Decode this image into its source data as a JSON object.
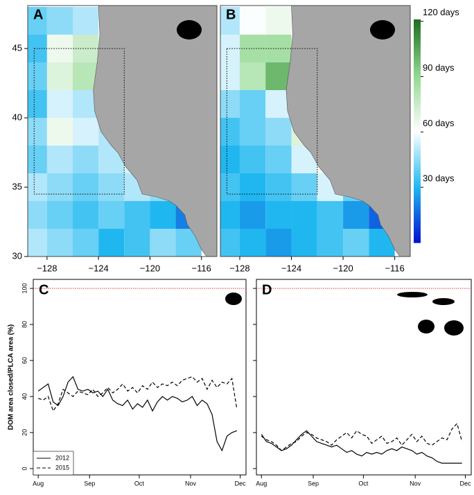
{
  "chart_data": [
    {
      "type": "heatmap",
      "label": "A",
      "xlim": [
        -129.5,
        -114.8
      ],
      "ylim": [
        30,
        48.1
      ],
      "x": [
        -130,
        -128,
        -126,
        -124,
        -122,
        -120,
        -118,
        -116
      ],
      "y": [
        46,
        44,
        42,
        40,
        38,
        36,
        34,
        32,
        30
      ],
      "z": [
        [
          40,
          45,
          50,
          null,
          null,
          null,
          null,
          null
        ],
        [
          35,
          65,
          75,
          null,
          null,
          null,
          null,
          null
        ],
        [
          40,
          70,
          80,
          null,
          null,
          null,
          null,
          null
        ],
        [
          35,
          55,
          50,
          45,
          null,
          null,
          null,
          null
        ],
        [
          45,
          65,
          55,
          50,
          null,
          null,
          null,
          null
        ],
        [
          40,
          50,
          45,
          50,
          55,
          null,
          null,
          null
        ],
        [
          50,
          45,
          40,
          45,
          50,
          45,
          null,
          null
        ],
        [
          45,
          40,
          35,
          40,
          35,
          30,
          20,
          null
        ],
        [
          50,
          45,
          40,
          30,
          35,
          45,
          40,
          null
        ]
      ],
      "zlim": [
        0,
        121
      ],
      "colorscale": [
        "#0010d0",
        "#20b8f0",
        "#ffffff",
        "#90d890",
        "#1e6e1e"
      ],
      "region": {
        "xlim": [
          -129,
          -122
        ],
        "ylim": [
          34.5,
          45
        ]
      },
      "yticks": [
        30,
        35,
        40,
        45
      ],
      "xticks": []
    },
    {
      "type": "heatmap",
      "label": "B",
      "xlim": [
        -129.5,
        -114.8
      ],
      "ylim": [
        30,
        48.1
      ],
      "x": [
        -130,
        -128,
        -126,
        -124,
        -122,
        -120,
        -118,
        -116
      ],
      "y": [
        46,
        44,
        42,
        40,
        38,
        36,
        34,
        32,
        30
      ],
      "z": [
        [
          50,
          60,
          65,
          null,
          null,
          null,
          null,
          null
        ],
        [
          55,
          85,
          85,
          null,
          null,
          null,
          null,
          null
        ],
        [
          55,
          80,
          100,
          null,
          null,
          null,
          null,
          null
        ],
        [
          45,
          40,
          55,
          80,
          null,
          null,
          null,
          null
        ],
        [
          35,
          40,
          45,
          70,
          null,
          null,
          null,
          null
        ],
        [
          30,
          35,
          40,
          55,
          65,
          null,
          null,
          null
        ],
        [
          35,
          30,
          35,
          40,
          55,
          40,
          null,
          null
        ],
        [
          30,
          25,
          30,
          30,
          35,
          25,
          15,
          null
        ],
        [
          35,
          30,
          25,
          30,
          35,
          40,
          30,
          null
        ]
      ],
      "zlim": [
        0,
        121
      ],
      "colorscale": [
        "#0010d0",
        "#20b8f0",
        "#ffffff",
        "#90d890",
        "#1e6e1e"
      ],
      "zticks": [
        {
          "value": 30,
          "label": "30 days"
        },
        {
          "value": 60,
          "label": "60 days"
        },
        {
          "value": 90,
          "label": "90 days"
        },
        {
          "value": 120,
          "label": "120 days"
        }
      ],
      "region": {
        "xlim": [
          -129,
          -122
        ],
        "ylim": [
          34.5,
          45
        ]
      },
      "yticks": [],
      "xticks": [
        {
          "value": -128,
          "label": "−128"
        },
        {
          "value": -124,
          "label": "−124"
        },
        {
          "value": -120,
          "label": "−120"
        },
        {
          "value": -116,
          "label": "−116"
        }
      ]
    },
    {
      "type": "line",
      "label": "C",
      "ylabel": "DOM area closed/PLCA area (%)",
      "xlim": [
        -3,
        125.5
      ],
      "ylim": [
        -3.5,
        105
      ],
      "yticks": [
        0,
        20,
        40,
        60,
        80,
        100
      ],
      "xticks": [
        {
          "value": 0,
          "label": "Aug"
        },
        {
          "value": 31,
          "label": "Sep"
        },
        {
          "value": 61,
          "label": "Oct"
        },
        {
          "value": 92,
          "label": "Nov"
        },
        {
          "value": 122,
          "label": "Dec"
        }
      ],
      "reference_line": 100,
      "legend": "bottom-left",
      "x": [
        0,
        3,
        6,
        9,
        12,
        15,
        18,
        21,
        24,
        27,
        30,
        33,
        36,
        39,
        42,
        45,
        48,
        51,
        54,
        57,
        60,
        63,
        66,
        69,
        72,
        75,
        78,
        81,
        84,
        87,
        90,
        93,
        96,
        99,
        102,
        105,
        108,
        111,
        114,
        117,
        120
      ],
      "series": [
        {
          "name": "2012",
          "color": "#000000",
          "dash": "solid",
          "values": [
            43,
            45,
            47,
            37,
            35,
            40,
            48,
            51,
            44,
            43,
            44,
            42,
            43,
            40,
            44,
            38,
            36,
            35,
            38,
            33,
            36,
            34,
            38,
            32,
            37,
            40,
            38,
            40,
            39,
            37,
            38,
            40,
            35,
            38,
            36,
            30,
            15,
            10,
            18,
            20,
            21
          ]
        },
        {
          "name": "2015",
          "color": "#000000",
          "dash": "dashed",
          "values": [
            39,
            38,
            40,
            32,
            36,
            44,
            42,
            40,
            43,
            42,
            41,
            44,
            40,
            42,
            45,
            42,
            44,
            47,
            43,
            45,
            42,
            46,
            44,
            48,
            45,
            47,
            46,
            48,
            46,
            49,
            50,
            51,
            48,
            50,
            44,
            49,
            45,
            48,
            47,
            50,
            33
          ]
        }
      ]
    },
    {
      "type": "line",
      "label": "D",
      "xlim": [
        -3,
        125.5
      ],
      "ylim": [
        -3.5,
        105
      ],
      "yticks": [],
      "xticks": [
        {
          "value": 0,
          "label": "Aug"
        },
        {
          "value": 31,
          "label": "Sep"
        },
        {
          "value": 61,
          "label": "Oct"
        },
        {
          "value": 92,
          "label": "Nov"
        },
        {
          "value": 122,
          "label": "Dec"
        }
      ],
      "reference_line": 100,
      "x": [
        0,
        3,
        6,
        9,
        12,
        15,
        18,
        21,
        24,
        27,
        30,
        33,
        36,
        39,
        42,
        45,
        48,
        51,
        54,
        57,
        60,
        63,
        66,
        69,
        72,
        75,
        78,
        81,
        84,
        87,
        90,
        93,
        96,
        99,
        102,
        105,
        108,
        111,
        114,
        117,
        120
      ],
      "series": [
        {
          "color": "#000000",
          "dash": "solid",
          "values": [
            19,
            15,
            14,
            12,
            10,
            11,
            13,
            16,
            19,
            21,
            18,
            15,
            14,
            13,
            12,
            13,
            11,
            9,
            10,
            8,
            7,
            9,
            8,
            9,
            8,
            10,
            11,
            10,
            12,
            11,
            10,
            8,
            9,
            7,
            6,
            4,
            3,
            3,
            3,
            3,
            3
          ]
        },
        {
          "color": "#000000",
          "dash": "dashed",
          "values": [
            18,
            16,
            15,
            13,
            10,
            12,
            14,
            15,
            18,
            20,
            19,
            17,
            16,
            15,
            13,
            16,
            18,
            20,
            17,
            21,
            19,
            18,
            14,
            16,
            18,
            14,
            15,
            17,
            13,
            16,
            19,
            15,
            18,
            14,
            13,
            15,
            17,
            16,
            22,
            25,
            15
          ]
        }
      ]
    }
  ]
}
